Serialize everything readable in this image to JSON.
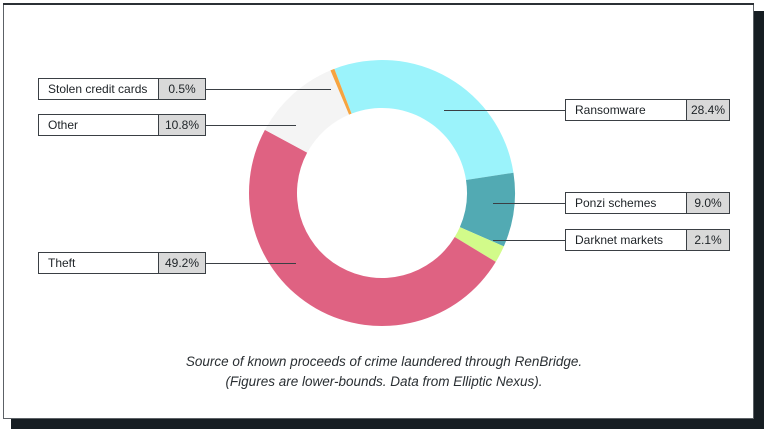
{
  "chart_data": {
    "type": "pie",
    "subtype": "donut",
    "title": "",
    "caption_line1": "Source of known proceeds of crime laundered through RenBridge.",
    "caption_line2": "(Figures are lower-bounds. Data from Elliptic Nexus).",
    "start_angle_deg": -21,
    "slices": [
      {
        "label": "Ransomware",
        "value": 28.4,
        "display": "28.4%",
        "color": "#9bf3fb"
      },
      {
        "label": "Ponzi schemes",
        "value": 9.0,
        "display": "9.0%",
        "color": "#52aab3"
      },
      {
        "label": "Darknet markets",
        "value": 2.1,
        "display": "2.1%",
        "color": "#d2fb8a"
      },
      {
        "label": "Theft",
        "value": 49.2,
        "display": "49.2%",
        "color": "#df6282"
      },
      {
        "label": "Other",
        "value": 10.8,
        "display": "10.8%",
        "color": "#f4f4f4"
      },
      {
        "label": "Stolen credit cards",
        "value": 0.5,
        "display": "0.5%",
        "color": "#f6a440"
      }
    ]
  },
  "labels": {
    "stolen": {
      "name": "Stolen credit cards",
      "pct": "0.5%"
    },
    "other": {
      "name": "Other",
      "pct": "10.8%"
    },
    "theft": {
      "name": "Theft",
      "pct": "49.2%"
    },
    "ransomware": {
      "name": "Ransomware",
      "pct": "28.4%"
    },
    "ponzi": {
      "name": "Ponzi schemes",
      "pct": "9.0%"
    },
    "darknet": {
      "name": "Darknet markets",
      "pct": "2.1%"
    }
  },
  "caption": {
    "line1": "Source of known proceeds of crime laundered through RenBridge.",
    "line2": "(Figures are lower-bounds. Data from Elliptic Nexus)."
  }
}
